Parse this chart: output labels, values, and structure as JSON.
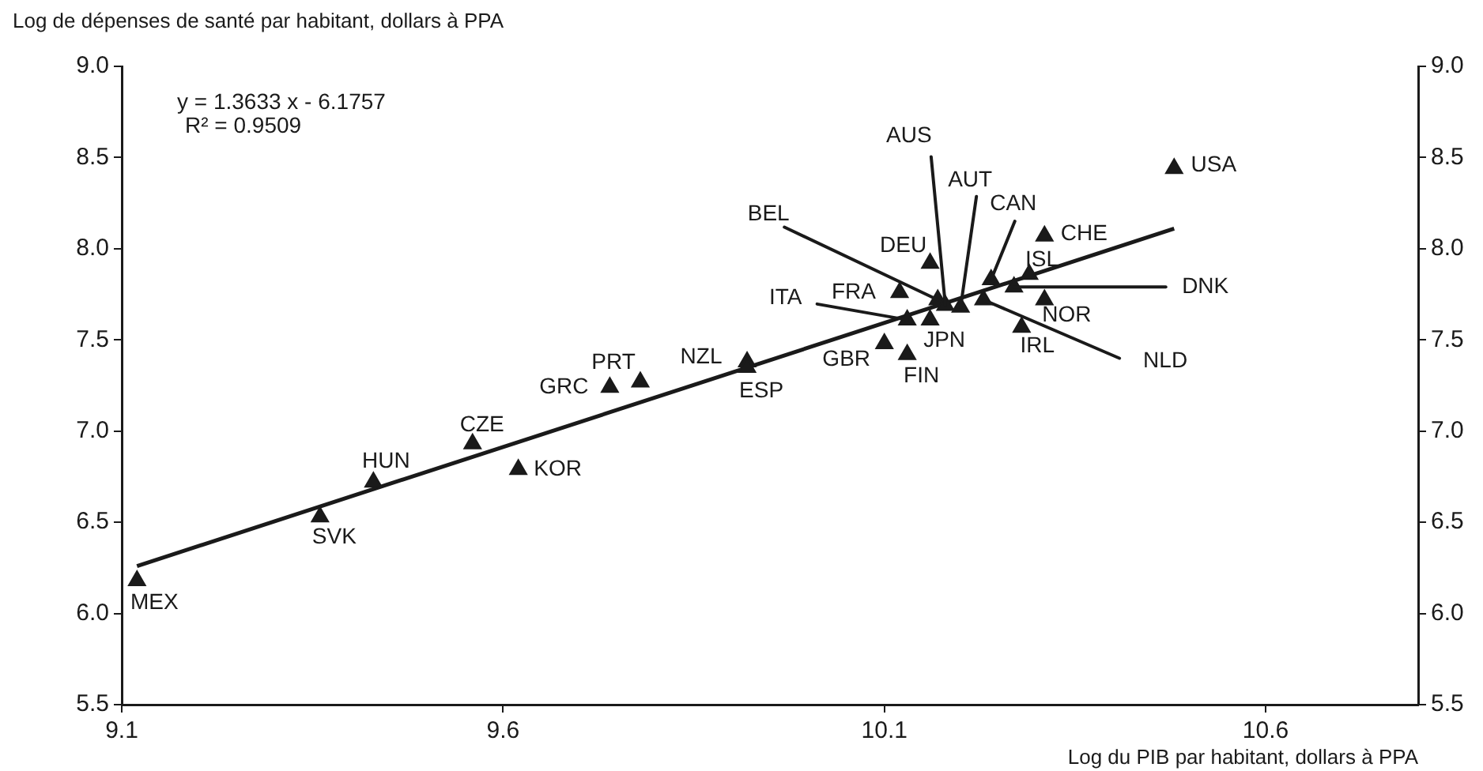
{
  "chart_data": {
    "type": "scatter",
    "xlabel": "Log du PIB par habitant, dollars à PPA",
    "ylabel": "Log de dépenses de santé par habitant, dollars à PPA",
    "xlim": [
      9.1,
      10.8
    ],
    "xticks": [
      9.1,
      9.6,
      10.1,
      10.6
    ],
    "ylim": [
      5.5,
      9
    ],
    "yticks": [
      {
        "value": 5.5,
        "label": "5.5"
      },
      {
        "value": 6,
        "label": "6.0"
      },
      {
        "value": 6.5,
        "label": "6.5"
      },
      {
        "value": 7,
        "label": "7.0"
      },
      {
        "value": 7.5,
        "label": "7.5"
      },
      {
        "value": 8,
        "label": "8.0"
      },
      {
        "value": 8.5,
        "label": "8.5"
      },
      {
        "value": 9,
        "label": "9.0"
      }
    ],
    "y2lim": [
      5.5,
      9
    ],
    "y2ticks": [
      {
        "value": 5.5,
        "label": "5.5"
      },
      {
        "value": 6,
        "label": "6.0"
      },
      {
        "value": 6.5,
        "label": "6.5"
      },
      {
        "value": 7,
        "label": "7.0"
      },
      {
        "value": 7.5,
        "label": "7.5"
      },
      {
        "value": 8,
        "label": "8.0"
      },
      {
        "value": 8.5,
        "label": "8.5"
      },
      {
        "value": 9,
        "label": "9.0"
      }
    ],
    "grid": false,
    "legend": false,
    "series": [
      {
        "marker": "triangle",
        "color": "#1a1a1a",
        "x": [
          9.12,
          9.36,
          9.43,
          9.56,
          9.62,
          9.74,
          9.78,
          9.92,
          9.92,
          10.48,
          10.31,
          10.16,
          10.29,
          10.27,
          10.31,
          10.12,
          10.17,
          10.18,
          10.2,
          10.24,
          10.23,
          10.13,
          10.16,
          10.28,
          10.1,
          10.13
        ],
        "values": [
          6.18,
          6.53,
          6.72,
          6.93,
          6.79,
          7.24,
          7.27,
          7.38,
          7.35,
          8.44,
          8.07,
          7.92,
          7.86,
          7.79,
          7.72,
          7.76,
          7.72,
          7.69,
          7.68,
          7.83,
          7.72,
          7.61,
          7.61,
          7.57,
          7.48,
          7.42
        ]
      },
      {
        "type": "line",
        "color": "#1a1a1a",
        "x": [
          9.12,
          10.48
        ],
        "values": [
          6.26,
          8.11
        ]
      }
    ],
    "annotations": [
      "y = 1.3633 x - 6.1757",
      "R² = 0.9509",
      {
        "text": "MEX",
        "x": 9.12,
        "y": 6.18
      },
      {
        "text": "SVK",
        "x": 9.36,
        "y": 6.53
      },
      {
        "text": "HUN",
        "x": 9.43,
        "y": 6.72
      },
      {
        "text": "CZE",
        "x": 9.56,
        "y": 6.93
      },
      {
        "text": "KOR",
        "x": 9.62,
        "y": 6.79
      },
      {
        "text": "GRC",
        "x": 9.74,
        "y": 7.24
      },
      {
        "text": "PRT",
        "x": 9.78,
        "y": 7.27
      },
      {
        "text": "NZL",
        "x": 9.92,
        "y": 7.38
      },
      {
        "text": "ESP",
        "x": 9.92,
        "y": 7.35
      },
      {
        "text": "USA",
        "x": 10.48,
        "y": 8.44
      },
      {
        "text": "CHE",
        "x": 10.31,
        "y": 8.07
      },
      {
        "text": "DEU",
        "x": 10.16,
        "y": 7.92
      },
      {
        "text": "ISL",
        "x": 10.29,
        "y": 7.86
      },
      {
        "text": "DNK",
        "x": 10.27,
        "y": 7.79
      },
      {
        "text": "NOR",
        "x": 10.31,
        "y": 7.72
      },
      {
        "text": "FRA",
        "x": 10.12,
        "y": 7.76
      },
      {
        "text": "BEL",
        "x": 10.17,
        "y": 7.72
      },
      {
        "text": "AUS",
        "x": 10.18,
        "y": 7.69
      },
      {
        "text": "AUT",
        "x": 10.2,
        "y": 7.68
      },
      {
        "text": "CAN",
        "x": 10.24,
        "y": 7.83
      },
      {
        "text": "NLD",
        "x": 10.23,
        "y": 7.72
      },
      {
        "text": "ITA",
        "x": 10.13,
        "y": 7.61
      },
      {
        "text": "JPN",
        "x": 10.16,
        "y": 7.61
      },
      {
        "text": "IRL",
        "x": 10.28,
        "y": 7.57
      },
      {
        "text": "GBR",
        "x": 10.1,
        "y": 7.48
      },
      {
        "text": "FIN",
        "x": 10.13,
        "y": 7.42
      }
    ]
  }
}
